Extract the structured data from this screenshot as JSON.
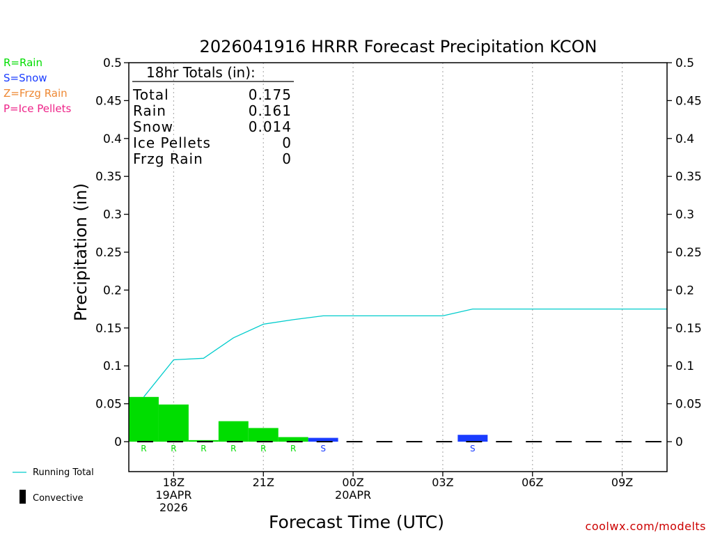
{
  "colors": {
    "rain": "#00dd00",
    "snow": "#1a3cff",
    "frzg": "#ee8833",
    "ice": "#ee2288",
    "running": "#00cccc",
    "watermark": "#cc0000"
  },
  "chart_data": {
    "type": "bar",
    "title": "2026041916 HRRR Forecast Precipitation KCON",
    "xlabel": "Forecast Time (UTC)",
    "ylabel": "Precipitation (in)",
    "ylim": [
      0,
      0.5
    ],
    "yticks": [
      "0",
      "0.05",
      "0.1",
      "0.15",
      "0.2",
      "0.25",
      "0.3",
      "0.35",
      "0.4",
      "0.45",
      "0.5"
    ],
    "xlim": [
      16.5,
      34.5
    ],
    "xticks": [
      {
        "hour": 18,
        "lines": [
          "18Z",
          "19APR",
          "2026"
        ]
      },
      {
        "hour": 21,
        "lines": [
          "21Z"
        ]
      },
      {
        "hour": 24,
        "lines": [
          "00Z",
          "20APR"
        ]
      },
      {
        "hour": 27,
        "lines": [
          "03Z"
        ]
      },
      {
        "hour": 30,
        "lines": [
          "06Z"
        ]
      },
      {
        "hour": 33,
        "lines": [
          "09Z"
        ]
      }
    ],
    "bars": [
      {
        "hour": 17,
        "value": 0.059,
        "ptype": "rain",
        "label": "R"
      },
      {
        "hour": 18,
        "value": 0.049,
        "ptype": "rain",
        "label": "R"
      },
      {
        "hour": 19,
        "value": 0.002,
        "ptype": "rain",
        "label": "R"
      },
      {
        "hour": 20,
        "value": 0.027,
        "ptype": "rain",
        "label": "R"
      },
      {
        "hour": 21,
        "value": 0.018,
        "ptype": "rain",
        "label": "R"
      },
      {
        "hour": 22,
        "value": 0.006,
        "ptype": "rain",
        "label": "R"
      },
      {
        "hour": 23,
        "value": 0.005,
        "ptype": "snow",
        "label": "S"
      },
      {
        "hour": 28,
        "value": 0.009,
        "ptype": "snow",
        "label": "S"
      }
    ],
    "running_total": {
      "hours": [
        17,
        18,
        19,
        20,
        21,
        22,
        23,
        24,
        25,
        26,
        27,
        28,
        29,
        30,
        31,
        32,
        33,
        34,
        34.5
      ],
      "values": [
        0.059,
        0.108,
        0.11,
        0.137,
        0.155,
        0.161,
        0.166,
        0.166,
        0.166,
        0.166,
        0.166,
        0.175,
        0.175,
        0.175,
        0.175,
        0.175,
        0.175,
        0.175,
        0.175
      ]
    },
    "convective_hours": [
      17,
      18,
      19,
      20,
      21,
      22,
      23,
      24,
      25,
      26,
      27,
      28,
      29,
      30,
      31,
      32,
      33,
      34
    ]
  },
  "legend_types": [
    {
      "text": "R=Rain",
      "key": "rain"
    },
    {
      "text": "S=Snow",
      "key": "snow"
    },
    {
      "text": "Z=Frzg Rain",
      "key": "frzg"
    },
    {
      "text": "P=Ice Pellets",
      "key": "ice"
    }
  ],
  "totals": {
    "header": "18hr Totals (in):",
    "rows": [
      {
        "label": "Total",
        "value": "0.175"
      },
      {
        "label": "Rain",
        "value": "0.161"
      },
      {
        "label": "Snow",
        "value": "0.014"
      },
      {
        "label": "Ice Pellets",
        "value": "0"
      },
      {
        "label": "Frzg Rain",
        "value": "0"
      }
    ]
  },
  "bottom_legend": {
    "running_total": "Running Total",
    "convective": "Convective"
  },
  "watermark": "coolwx.com/modelts"
}
